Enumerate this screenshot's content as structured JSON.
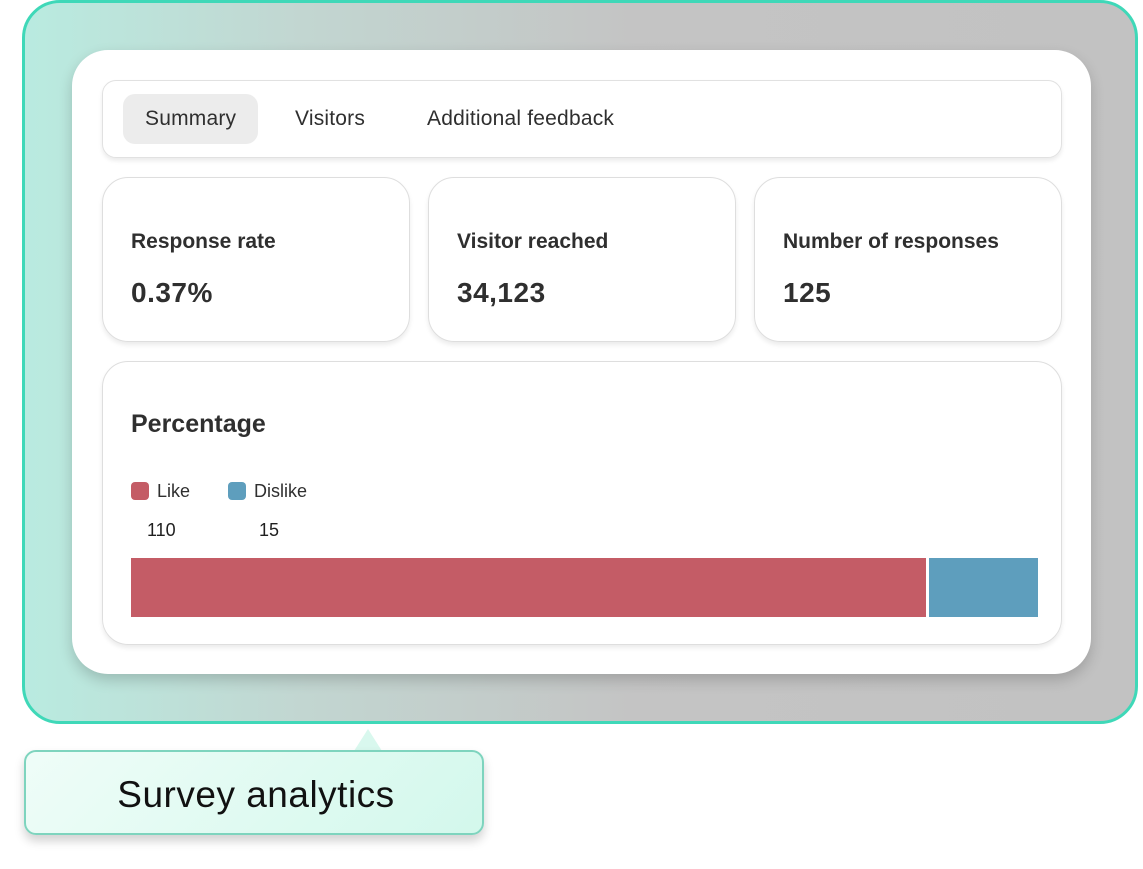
{
  "tabs": {
    "summary": "Summary",
    "visitors": "Visitors",
    "feedback": "Additional feedback",
    "active": "summary"
  },
  "stats": [
    {
      "label": "Response rate",
      "value": "0.37%"
    },
    {
      "label": "Visitor reached",
      "value": "34,123"
    },
    {
      "label": "Number of responses",
      "value": "125"
    }
  ],
  "chart_data": {
    "type": "bar",
    "title": "Percentage",
    "stacked": true,
    "orientation": "horizontal",
    "categories": [
      "Like",
      "Dislike"
    ],
    "values": [
      110,
      15
    ],
    "colors": [
      "#c45c66",
      "#5e9ebd"
    ]
  },
  "caption": "Survey analytics"
}
